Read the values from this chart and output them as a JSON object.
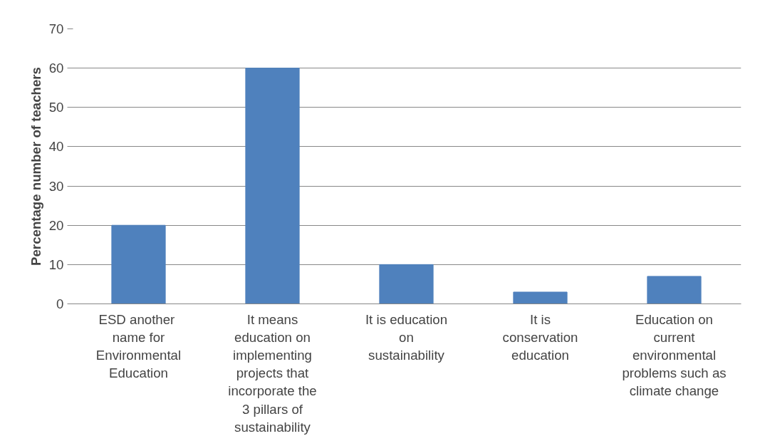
{
  "chart_data": {
    "type": "bar",
    "ylabel": "Percentage number of teachers",
    "categories": [
      "ESD  another name for Environmental Education",
      "It means education on implementing projects that incorporate the 3 pillars of sustainability",
      "It is education on sustainability",
      "It is conservation education",
      "Education on current environmental problems such as climate change"
    ],
    "values": [
      20,
      60,
      10,
      3,
      7
    ],
    "color": "#4f81bd",
    "ylim": [
      0,
      70
    ],
    "yticks": [
      0,
      10,
      20,
      30,
      40,
      50,
      60,
      70
    ],
    "grid": "y"
  }
}
